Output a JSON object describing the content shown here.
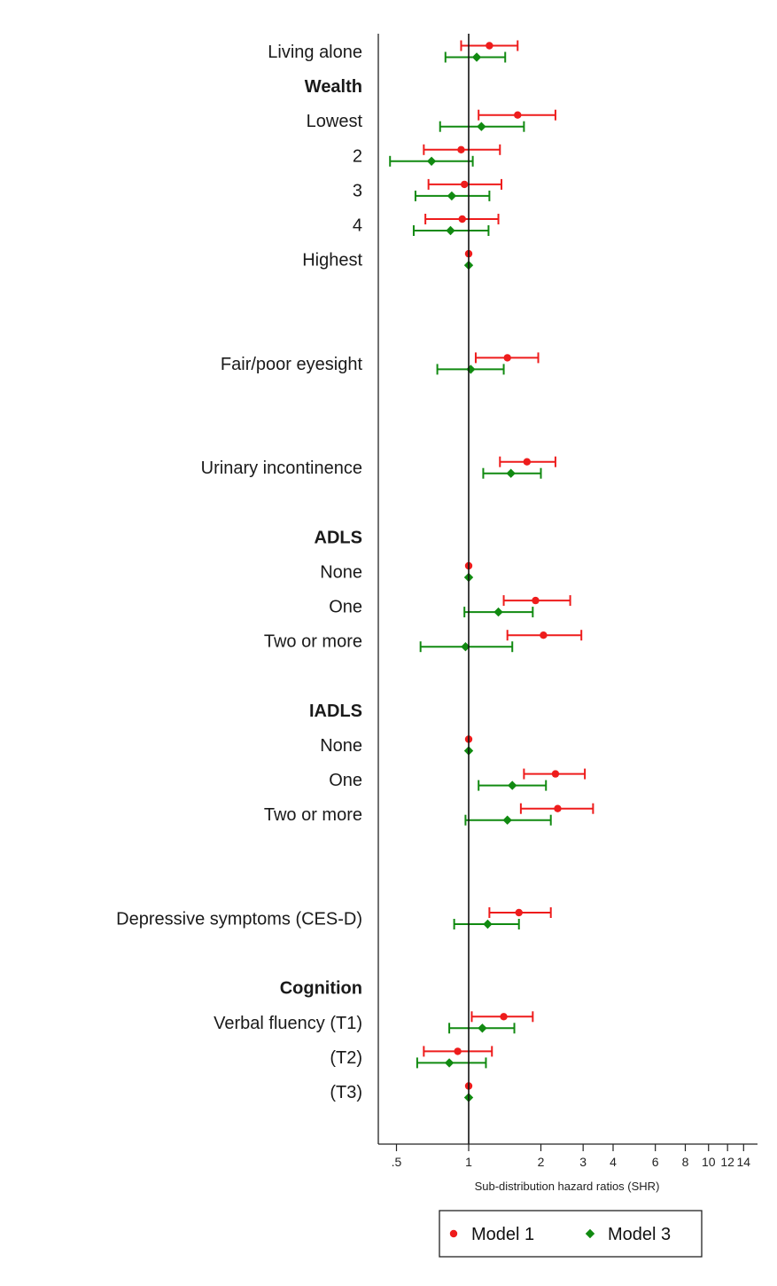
{
  "chart_data": {
    "type": "forest",
    "xlabel": "Sub-distribution hazard ratios (SHR)",
    "xscale": "log",
    "xlim": [
      0.42,
      16
    ],
    "xticks": [
      {
        "v": 0.5,
        "label": ".5"
      },
      {
        "v": 1,
        "label": "1"
      },
      {
        "v": 2,
        "label": "2"
      },
      {
        "v": 3,
        "label": "3"
      },
      {
        "v": 4,
        "label": "4"
      },
      {
        "v": 6,
        "label": "6"
      },
      {
        "v": 8,
        "label": "8"
      },
      {
        "v": 10,
        "label": "10"
      },
      {
        "v": 12,
        "label": "12"
      },
      {
        "v": 14,
        "label": "14"
      }
    ],
    "reference_line": 1,
    "legend": {
      "placement": "bottom-center",
      "items": [
        {
          "name": "Model 1",
          "color": "#ee1c1c",
          "marker": "circle"
        },
        {
          "name": "Model 3",
          "color": "#118a11",
          "marker": "diamond"
        }
      ]
    },
    "rows": [
      {
        "label": "Living alone",
        "bold": false,
        "slot": 0,
        "m1": [
          1.22,
          0.93,
          1.6
        ],
        "m3": [
          1.08,
          0.8,
          1.42
        ]
      },
      {
        "label": "Wealth",
        "bold": true,
        "slot": 1
      },
      {
        "label": "Lowest",
        "bold": false,
        "slot": 2,
        "m1": [
          1.6,
          1.1,
          2.3
        ],
        "m3": [
          1.13,
          0.76,
          1.7
        ]
      },
      {
        "label": "2",
        "bold": false,
        "slot": 3,
        "m1": [
          0.93,
          0.65,
          1.35
        ],
        "m3": [
          0.7,
          0.47,
          1.04
        ]
      },
      {
        "label": "3",
        "bold": false,
        "slot": 4,
        "m1": [
          0.96,
          0.68,
          1.37
        ],
        "m3": [
          0.85,
          0.6,
          1.22
        ]
      },
      {
        "label": "4",
        "bold": false,
        "slot": 5,
        "m1": [
          0.94,
          0.66,
          1.33
        ],
        "m3": [
          0.84,
          0.59,
          1.21
        ]
      },
      {
        "label": "Highest",
        "bold": false,
        "slot": 6,
        "m1": [
          1.0,
          1.0,
          1.0
        ],
        "m3": [
          1.0,
          1.0,
          1.0
        ]
      },
      {
        "label": "Fair/poor eyesight",
        "bold": false,
        "slot": 9,
        "m1": [
          1.45,
          1.07,
          1.95
        ],
        "m3": [
          1.02,
          0.74,
          1.4
        ]
      },
      {
        "label": "Urinary incontinence",
        "bold": false,
        "slot": 12,
        "m1": [
          1.75,
          1.35,
          2.3
        ],
        "m3": [
          1.5,
          1.15,
          2.0
        ]
      },
      {
        "label": "ADLS",
        "bold": true,
        "slot": 14
      },
      {
        "label": "None",
        "bold": false,
        "slot": 15,
        "m1": [
          1.0,
          1.0,
          1.0
        ],
        "m3": [
          1.0,
          1.0,
          1.0
        ]
      },
      {
        "label": "One",
        "bold": false,
        "slot": 16,
        "m1": [
          1.9,
          1.4,
          2.65
        ],
        "m3": [
          1.33,
          0.96,
          1.85
        ]
      },
      {
        "label": "Two or more",
        "bold": false,
        "slot": 17,
        "m1": [
          2.05,
          1.45,
          2.95
        ],
        "m3": [
          0.97,
          0.63,
          1.52
        ]
      },
      {
        "label": "IADLS",
        "bold": true,
        "slot": 19
      },
      {
        "label": "None",
        "bold": false,
        "slot": 20,
        "m1": [
          1.0,
          1.0,
          1.0
        ],
        "m3": [
          1.0,
          1.0,
          1.0
        ]
      },
      {
        "label": "One",
        "bold": false,
        "slot": 21,
        "m1": [
          2.3,
          1.7,
          3.05
        ],
        "m3": [
          1.52,
          1.1,
          2.1
        ]
      },
      {
        "label": "Two or more",
        "bold": false,
        "slot": 22,
        "m1": [
          2.35,
          1.65,
          3.3
        ],
        "m3": [
          1.45,
          0.97,
          2.2
        ]
      },
      {
        "label": "Depressive symptoms (CES-D)",
        "bold": false,
        "slot": 25,
        "m1": [
          1.62,
          1.22,
          2.2
        ],
        "m3": [
          1.2,
          0.87,
          1.62
        ]
      },
      {
        "label": "Cognition",
        "bold": true,
        "slot": 27
      },
      {
        "label": "Verbal fluency (T1)",
        "bold": false,
        "slot": 28,
        "m1": [
          1.4,
          1.03,
          1.85
        ],
        "m3": [
          1.14,
          0.83,
          1.55
        ]
      },
      {
        "label": "(T2)",
        "bold": false,
        "slot": 29,
        "m1": [
          0.9,
          0.65,
          1.25
        ],
        "m3": [
          0.83,
          0.61,
          1.18
        ]
      },
      {
        "label": "(T3)",
        "bold": false,
        "slot": 30,
        "m1": [
          1.0,
          1.0,
          1.0
        ],
        "m3": [
          1.0,
          1.0,
          1.0
        ]
      }
    ]
  }
}
